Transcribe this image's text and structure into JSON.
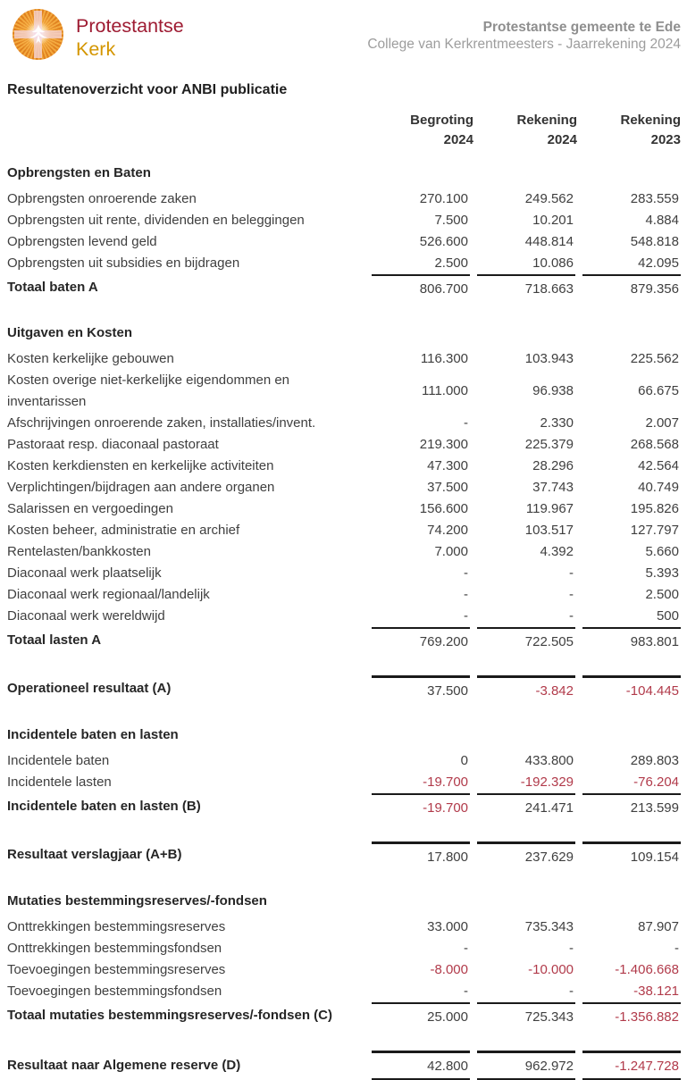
{
  "colors": {
    "text": "#3f3f3f",
    "strong": "#262626",
    "negative": "#b13a4a",
    "muted_header": "#8f8f8f",
    "brand_red": "#9e1b32",
    "brand_gold": "#d49600",
    "rule": "#1a1a1a"
  },
  "header": {
    "logo_icon": "pkn-sun-cross-dove-logo",
    "logo_line1": "Protestantse",
    "logo_line2": "Kerk",
    "org_line1": "Protestantse gemeente te Ede",
    "org_line2": "College van Kerkrentmeesters - Jaarrekening 2024"
  },
  "page_title": "Resultatenoverzicht voor ANBI publicatie",
  "columns": [
    {
      "label": "Begroting",
      "year": "2024"
    },
    {
      "label": "Rekening",
      "year": "2024"
    },
    {
      "label": "Rekening",
      "year": "2023"
    }
  ],
  "table": {
    "rows": [
      {
        "kind": "section",
        "label": "Opbrengsten en Baten"
      },
      {
        "kind": "row",
        "label": "Opbrengsten onroerende zaken",
        "values": [
          "270.100",
          "249.562",
          "283.559"
        ]
      },
      {
        "kind": "row",
        "label": "Opbrengsten uit rente, dividenden en beleggingen",
        "values": [
          "7.500",
          "10.201",
          "4.884"
        ]
      },
      {
        "kind": "row",
        "label": "Opbrengsten levend geld",
        "values": [
          "526.600",
          "448.814",
          "548.818"
        ]
      },
      {
        "kind": "row",
        "label": "Opbrengsten uit subsidies en bijdragen",
        "values": [
          "2.500",
          "10.086",
          "42.095"
        ]
      },
      {
        "kind": "row",
        "label": "Totaal baten A",
        "values": [
          "806.700",
          "718.663",
          "879.356"
        ],
        "bold": true,
        "line": "thin"
      },
      {
        "kind": "gap"
      },
      {
        "kind": "section",
        "label": "Uitgaven en Kosten"
      },
      {
        "kind": "row",
        "label": "Kosten kerkelijke gebouwen",
        "values": [
          "116.300",
          "103.943",
          "225.562"
        ]
      },
      {
        "kind": "row",
        "label": "Kosten overige niet-kerkelijke eigendommen en inventarissen",
        "values": [
          "111.000",
          "96.938",
          "66.675"
        ]
      },
      {
        "kind": "row",
        "label": "Afschrijvingen onroerende zaken, installaties/invent.",
        "values": [
          "-",
          "2.330",
          "2.007"
        ]
      },
      {
        "kind": "row",
        "label": "Pastoraat resp. diaconaal pastoraat",
        "values": [
          "219.300",
          "225.379",
          "268.568"
        ]
      },
      {
        "kind": "row",
        "label": "Kosten kerkdiensten en kerkelijke activiteiten",
        "values": [
          "47.300",
          "28.296",
          "42.564"
        ]
      },
      {
        "kind": "row",
        "label": "Verplichtingen/bijdragen aan andere organen",
        "values": [
          "37.500",
          "37.743",
          "40.749"
        ]
      },
      {
        "kind": "row",
        "label": "Salarissen en vergoedingen",
        "values": [
          "156.600",
          "119.967",
          "195.826"
        ]
      },
      {
        "kind": "row",
        "label": "Kosten beheer, administratie en archief",
        "values": [
          "74.200",
          "103.517",
          "127.797"
        ]
      },
      {
        "kind": "row",
        "label": "Rentelasten/bankkosten",
        "values": [
          "7.000",
          "4.392",
          "5.660"
        ]
      },
      {
        "kind": "row",
        "label": "Diaconaal werk plaatselijk",
        "values": [
          "-",
          "-",
          "5.393"
        ]
      },
      {
        "kind": "row",
        "label": "Diaconaal werk regionaal/landelijk",
        "values": [
          "-",
          "-",
          "2.500"
        ]
      },
      {
        "kind": "row",
        "label": "Diaconaal werk wereldwijd",
        "values": [
          "-",
          "-",
          "500"
        ]
      },
      {
        "kind": "row",
        "label": "Totaal lasten A",
        "values": [
          "769.200",
          "722.505",
          "983.801"
        ],
        "bold": true,
        "line": "thin"
      },
      {
        "kind": "gap"
      },
      {
        "kind": "row",
        "label": "Operationeel resultaat (A)",
        "values": [
          "37.500",
          "-3.842",
          "-104.445"
        ],
        "bold": true,
        "line": "thick"
      },
      {
        "kind": "gap"
      },
      {
        "kind": "section",
        "label": "Incidentele baten en lasten"
      },
      {
        "kind": "row",
        "label": "Incidentele baten",
        "values": [
          "0",
          "433.800",
          "289.803"
        ]
      },
      {
        "kind": "row",
        "label": "Incidentele lasten",
        "values": [
          "-19.700",
          "-192.329",
          "-76.204"
        ]
      },
      {
        "kind": "row",
        "label": "Incidentele baten en lasten (B)",
        "values": [
          "-19.700",
          "241.471",
          "213.599"
        ],
        "bold": true,
        "line": "thin"
      },
      {
        "kind": "gap"
      },
      {
        "kind": "row",
        "label": "Resultaat verslagjaar (A+B)",
        "values": [
          "17.800",
          "237.629",
          "109.154"
        ],
        "bold": true,
        "line": "thick"
      },
      {
        "kind": "gap"
      },
      {
        "kind": "section",
        "label": "Mutaties bestemmingsreserves/-fondsen"
      },
      {
        "kind": "row",
        "label": "Onttrekkingen bestemmingsreserves",
        "values": [
          "33.000",
          "735.343",
          "87.907"
        ]
      },
      {
        "kind": "row",
        "label": "Onttrekkingen bestemmingsfondsen",
        "values": [
          "-",
          "-",
          "-"
        ]
      },
      {
        "kind": "row",
        "label": "Toevoegingen bestemmingsreserves",
        "values": [
          "-8.000",
          "-10.000",
          "-1.406.668"
        ]
      },
      {
        "kind": "row",
        "label": "Toevoegingen bestemmingsfondsen",
        "values": [
          "-",
          "-",
          "-38.121"
        ]
      },
      {
        "kind": "row",
        "label": "Totaal mutaties bestemmingsreserves/-fondsen (C)",
        "values": [
          "25.000",
          "725.343",
          "-1.356.882"
        ],
        "bold": true,
        "line": "thin"
      },
      {
        "kind": "gap"
      },
      {
        "kind": "row",
        "label": "Resultaat naar Algemene reserve (D)",
        "values": [
          "42.800",
          "962.972",
          "-1.247.728"
        ],
        "bold": true,
        "line": "thick",
        "bottom": true
      }
    ]
  }
}
